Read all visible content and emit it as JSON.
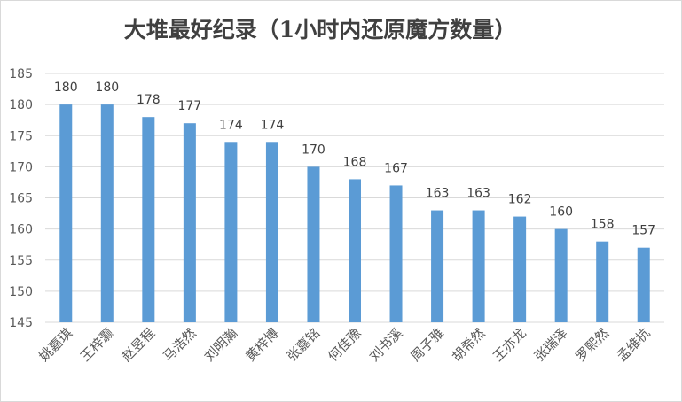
{
  "chart_data": {
    "type": "bar",
    "title": "大堆最好纪录（1小时内还原魔方数量）",
    "xlabel": "",
    "ylabel": "",
    "categories": [
      "姚嘉琪",
      "王梓灏",
      "赵昱程",
      "马浩然",
      "刘明瀚",
      "黄梓博",
      "张嘉铭",
      "何佳豫",
      "刘书溪",
      "周子雅",
      "胡希然",
      "王亦龙",
      "张瑞泽",
      "罗熙然",
      "孟维杭"
    ],
    "values": [
      180,
      180,
      178,
      177,
      174,
      174,
      170,
      168,
      167,
      163,
      163,
      162,
      160,
      158,
      157
    ],
    "ylim": [
      145,
      185
    ],
    "yticks": [
      145,
      150,
      155,
      160,
      165,
      170,
      175,
      180,
      185
    ],
    "grid": true,
    "legend": "none",
    "bar_color": "#5b9bd5",
    "grid_color": "#d9d9d9"
  }
}
